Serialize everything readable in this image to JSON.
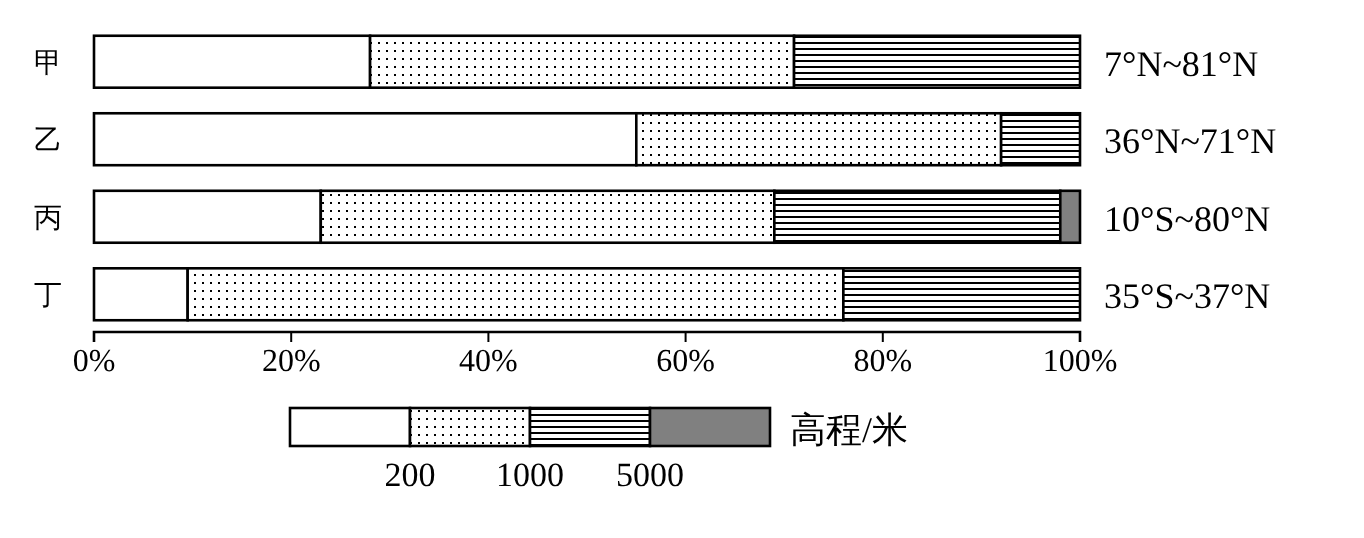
{
  "chart_data": {
    "type": "bar",
    "orientation": "horizontal",
    "stacked": true,
    "categories": [
      "甲",
      "乙",
      "丙",
      "丁"
    ],
    "series": [
      {
        "color": "#ffffff",
        "values": [
          28,
          55,
          23,
          9.5
        ]
      },
      {
        "color": "#000000",
        "values": [
          43,
          37,
          46,
          66.5
        ]
      },
      {
        "color": "#000000",
        "values": [
          29,
          8,
          29,
          24
        ]
      },
      {
        "color": "#808080",
        "values": [
          0,
          0,
          2,
          0
        ]
      }
    ],
    "xlim": [
      0,
      100
    ],
    "xticks": [
      {
        "value": 0,
        "label": "0%"
      },
      {
        "value": 20,
        "label": "20%"
      },
      {
        "value": 40,
        "label": "40%"
      },
      {
        "value": 60,
        "label": "60%"
      },
      {
        "value": 80,
        "label": "80%"
      },
      {
        "value": 100,
        "label": "100%"
      }
    ],
    "legend_title": "高程/米",
    "annotations": [
      "7°N~81°N",
      "36°N~71°N",
      "10°S~80°N",
      "35°S~37°N",
      "200",
      "1000",
      "5000"
    ]
  }
}
